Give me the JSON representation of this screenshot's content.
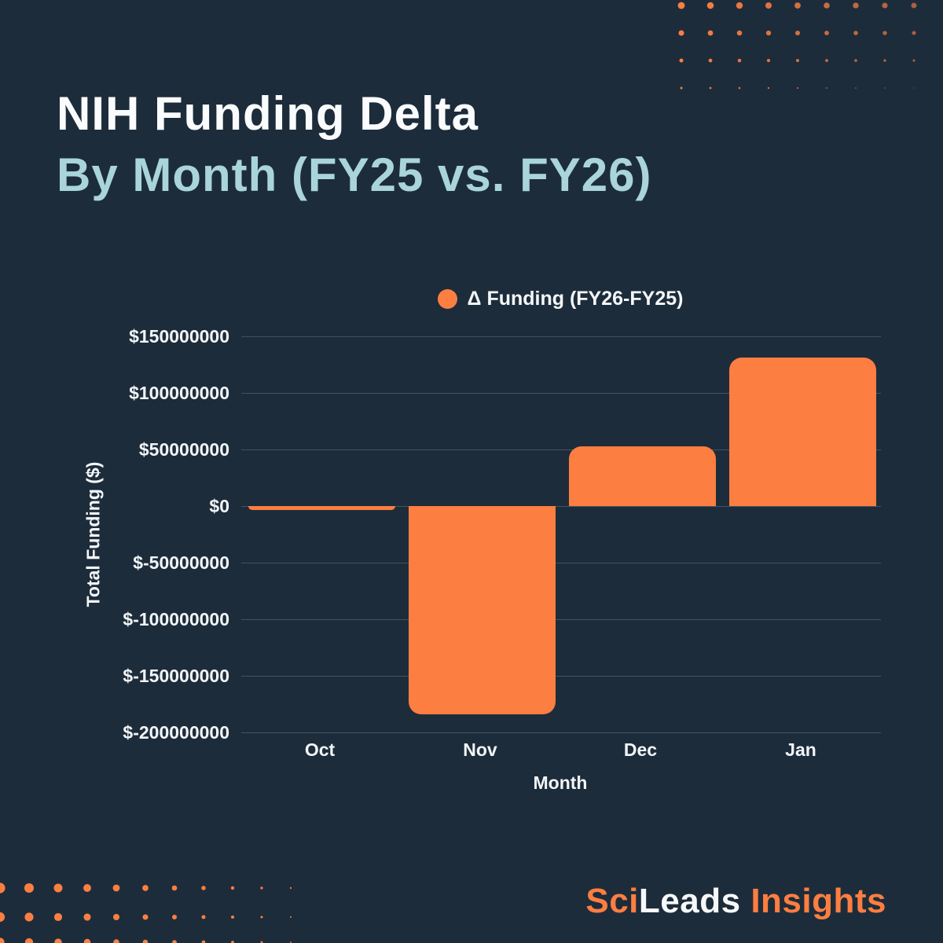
{
  "header": {
    "title_line1": "NIH Funding Delta",
    "title_line2": "By Month (FY25 vs. FY26)"
  },
  "chart_data": {
    "type": "bar",
    "title": "NIH Funding Delta By Month (FY25 vs. FY26)",
    "legend_label": "Δ Funding (FY26-FY25)",
    "legend_position": "top-center",
    "categories": [
      "Oct",
      "Nov",
      "Dec",
      "Jan"
    ],
    "series": [
      {
        "name": "Δ Funding (FY26-FY25)",
        "values": [
          -3500000,
          -184000000,
          53000000,
          131000000
        ]
      }
    ],
    "xlabel": "Month",
    "ylabel": "Total Funding ($)",
    "ylim": [
      -200000000,
      150000000
    ],
    "grid": true,
    "yticks": [
      {
        "value": 150000000,
        "label": "$150000000"
      },
      {
        "value": 100000000,
        "label": "$100000000"
      },
      {
        "value": 50000000,
        "label": "$50000000"
      },
      {
        "value": 0,
        "label": "$0"
      },
      {
        "value": -50000000,
        "label": "$-50000000"
      },
      {
        "value": -100000000,
        "label": "$-100000000"
      },
      {
        "value": -150000000,
        "label": "$-150000000"
      },
      {
        "value": -200000000,
        "label": "$-200000000"
      }
    ]
  },
  "footer": {
    "brand_part1": "Sci",
    "brand_part2": "Leads",
    "brand_part3": "Insights"
  },
  "colors": {
    "background": "#1d2c3b",
    "accent_orange": "#fd7e41",
    "title_primary": "#fafbfc",
    "title_secondary": "#a9d5d9",
    "axis_text": "#f2f5f7",
    "gridline": "#44525e"
  }
}
